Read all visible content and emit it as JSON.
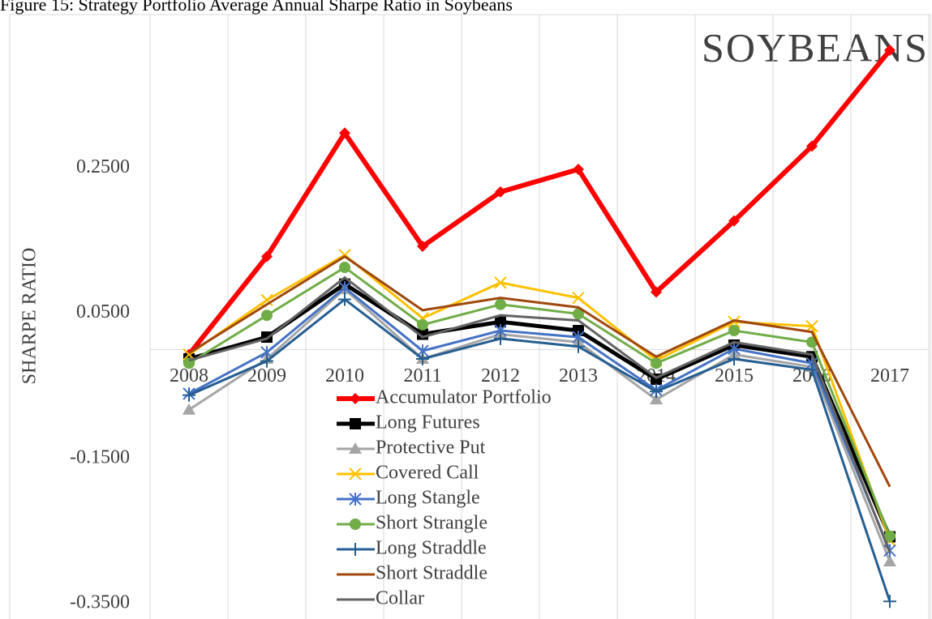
{
  "chart_data": {
    "type": "line",
    "caption": "Figure 15: Strategy Portfolio Average Annual Sharpe Ratio in Soybeans",
    "annotation": "SOYBEANS",
    "y_label": "SHARPE RATIO",
    "categories": [
      "2008",
      "2009",
      "2010",
      "2011",
      "2012",
      "2013",
      "2014",
      "2015",
      "2016",
      "2017"
    ],
    "ylim": [
      -0.35,
      0.45
    ],
    "yticks": [
      {
        "value": -0.35,
        "label": "-0.3500"
      },
      {
        "value": -0.15,
        "label": "-0.1500"
      },
      {
        "value": 0.05,
        "label": "0.0500"
      },
      {
        "value": 0.25,
        "label": "0.2500"
      }
    ],
    "grid": true,
    "series": [
      {
        "name": "Accumulator Portfolio",
        "color": "#ff0000",
        "marker": "diamond",
        "width": 6,
        "values": [
          -0.007,
          0.128,
          0.298,
          0.142,
          0.217,
          0.248,
          0.079,
          0.177,
          0.28,
          0.412
        ]
      },
      {
        "name": "Long Futures",
        "color": "#000000",
        "marker": "square",
        "width": 5,
        "values": [
          -0.013,
          0.017,
          0.09,
          0.021,
          0.038,
          0.026,
          -0.041,
          0.006,
          -0.01,
          -0.258
        ]
      },
      {
        "name": "Protective Put",
        "color": "#a5a5a5",
        "marker": "triangle",
        "width": 3,
        "values": [
          -0.083,
          -0.013,
          0.083,
          -0.013,
          0.021,
          0.01,
          -0.069,
          -0.007,
          -0.024,
          -0.292
        ]
      },
      {
        "name": "Covered Call",
        "color": "#ffc000",
        "marker": "x",
        "width": 3,
        "values": [
          -0.007,
          0.068,
          0.13,
          0.043,
          0.092,
          0.071,
          -0.015,
          0.038,
          0.032,
          -0.263
        ]
      },
      {
        "name": "Long Stangle",
        "color": "#4472c4",
        "marker": "star",
        "width": 3,
        "values": [
          -0.061,
          -0.004,
          0.085,
          -0.002,
          0.026,
          0.017,
          -0.056,
          0.001,
          -0.019,
          -0.277
        ]
      },
      {
        "name": "Short Strangle",
        "color": "#70ad47",
        "marker": "circle",
        "width": 3,
        "values": [
          -0.019,
          0.047,
          0.113,
          0.034,
          0.062,
          0.049,
          -0.019,
          0.026,
          0.01,
          -0.257
        ]
      },
      {
        "name": "Long Straddle",
        "color": "#255e91",
        "marker": "plus",
        "width": 3,
        "values": [
          -0.063,
          -0.016,
          0.069,
          -0.013,
          0.015,
          0.004,
          -0.058,
          -0.013,
          -0.028,
          -0.347
        ]
      },
      {
        "name": "Short Straddle",
        "color": "#9e480e",
        "marker": "none",
        "width": 3,
        "values": [
          -0.005,
          0.062,
          0.128,
          0.054,
          0.071,
          0.058,
          -0.01,
          0.04,
          0.024,
          -0.189
        ]
      },
      {
        "name": "Collar",
        "color": "#636363",
        "marker": "none",
        "width": 3,
        "values": [
          -0.015,
          0.015,
          0.099,
          0.017,
          0.047,
          0.04,
          -0.039,
          0.01,
          -0.007,
          -0.28
        ]
      }
    ]
  }
}
